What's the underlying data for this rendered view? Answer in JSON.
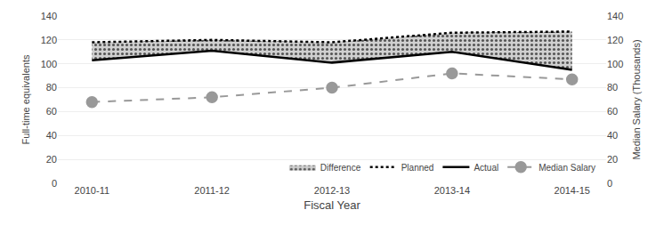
{
  "chart_data": {
    "type": "line",
    "categories": [
      "2010-11",
      "2011-12",
      "2012-13",
      "2013-14",
      "2014-15"
    ],
    "xlabel": "Fiscal Year",
    "ylabel": "Full-time equivalents",
    "y2label": "Median Salary (Thousands)",
    "ylim": [
      0,
      140
    ],
    "yticks": [
      0,
      20,
      40,
      60,
      80,
      100,
      120,
      140
    ],
    "y2lim": [
      0,
      140
    ],
    "y2ticks": [
      0,
      20,
      40,
      60,
      80,
      100,
      120,
      140
    ],
    "grid": true,
    "legend": "lower right",
    "series": [
      {
        "name": "Difference",
        "type": "band",
        "color": "#d0d0d0"
      },
      {
        "name": "Planned",
        "type": "line",
        "color": "#000000",
        "line_style": "dotted",
        "values": [
          118,
          120,
          118,
          126,
          127
        ]
      },
      {
        "name": "Actual",
        "type": "line",
        "color": "#000000",
        "line_style": "solid",
        "values": [
          103,
          111,
          101,
          110,
          95
        ]
      },
      {
        "name": "Median Salary",
        "type": "line",
        "color": "#999999",
        "line_style": "dashed",
        "marker": "circle",
        "axis": "y2",
        "values": [
          68,
          72,
          80,
          92,
          87
        ]
      }
    ]
  }
}
